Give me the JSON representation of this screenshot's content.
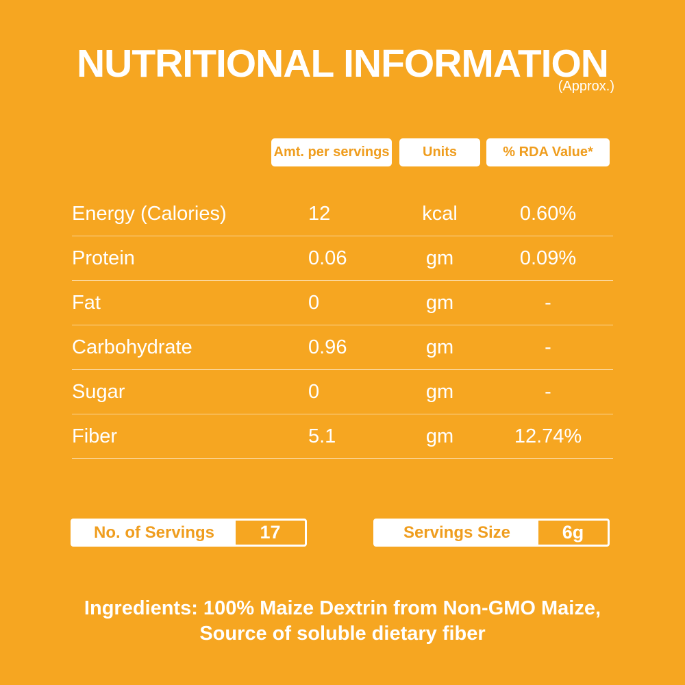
{
  "colors": {
    "background": "#F6A621",
    "text_white": "#FFFFFF",
    "accent_orange": "#EF9D1E",
    "divider": "rgba(255,255,255,0.55)"
  },
  "header": {
    "title": "NUTRITIONAL INFORMATION",
    "subtitle": "(Approx.)"
  },
  "table": {
    "columns": [
      "Amt. per servings",
      "Units",
      "% RDA Value*"
    ],
    "rows": [
      {
        "label": "Energy (Calories)",
        "amount": "12",
        "unit": "kcal",
        "rda": "0.60%"
      },
      {
        "label": "Protein",
        "amount": "0.06",
        "unit": "gm",
        "rda": "0.09%"
      },
      {
        "label": "Fat",
        "amount": "0",
        "unit": "gm",
        "rda": "-"
      },
      {
        "label": "Carbohydrate",
        "amount": "0.96",
        "unit": "gm",
        "rda": "-"
      },
      {
        "label": "Sugar",
        "amount": "0",
        "unit": "gm",
        "rda": "-"
      },
      {
        "label": "Fiber",
        "amount": "5.1",
        "unit": "gm",
        "rda": "12.74%"
      }
    ]
  },
  "servings": {
    "count_label": "No. of Servings",
    "count_value": "17",
    "size_label": "Servings Size",
    "size_value": "6g"
  },
  "ingredients": {
    "line1": "Ingredients: 100% Maize Dextrin from Non-GMO Maize,",
    "line2": "Source of soluble dietary fiber"
  }
}
